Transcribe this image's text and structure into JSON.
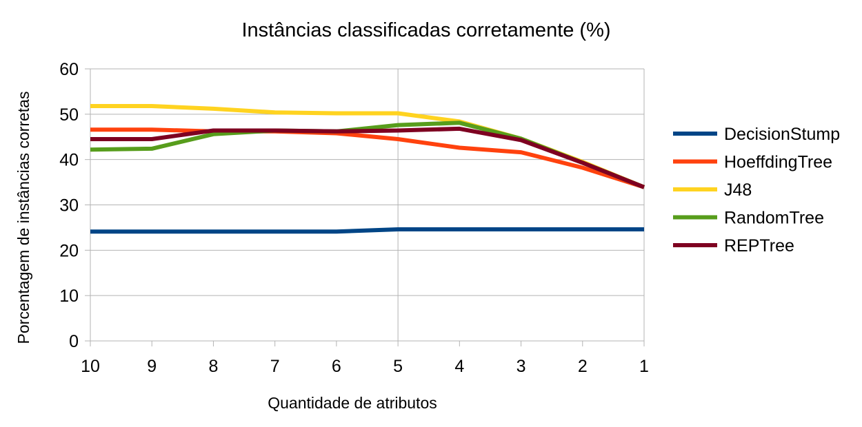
{
  "chart_data": {
    "type": "line",
    "title": "Instâncias classificadas corretamente (%)",
    "xlabel": "Quantidade de atributos",
    "ylabel": "Porcentagem de instâncias corretas",
    "categories": [
      "10",
      "9",
      "8",
      "7",
      "6",
      "5",
      "4",
      "3",
      "2",
      "1"
    ],
    "ylim": [
      0,
      60
    ],
    "yticks": [
      0,
      10,
      20,
      30,
      40,
      50,
      60
    ],
    "grid": "horizontal",
    "legend_position": "right",
    "series": [
      {
        "name": "DecisionStump",
        "color": "#004586",
        "values": [
          24.1,
          24.1,
          24.1,
          24.1,
          24.1,
          24.6,
          24.6,
          24.6,
          24.6,
          24.6
        ]
      },
      {
        "name": "HoeffdingTree",
        "color": "#ff420e",
        "values": [
          46.6,
          46.6,
          46.2,
          46.2,
          45.8,
          44.5,
          42.6,
          41.6,
          38.2,
          33.9
        ]
      },
      {
        "name": "J48",
        "color": "#ffd320",
        "values": [
          51.8,
          51.8,
          51.2,
          50.4,
          50.2,
          50.2,
          48.4,
          44.6,
          39.5,
          33.9
        ]
      },
      {
        "name": "RandomTree",
        "color": "#579d1c",
        "values": [
          42.2,
          42.4,
          45.6,
          46.4,
          46.2,
          47.6,
          48.1,
          44.6,
          39.3,
          33.9
        ]
      },
      {
        "name": "REPTree",
        "color": "#7e0021",
        "values": [
          44.5,
          44.5,
          46.4,
          46.4,
          46.2,
          46.4,
          46.8,
          44.3,
          39.3,
          33.9
        ]
      }
    ]
  }
}
